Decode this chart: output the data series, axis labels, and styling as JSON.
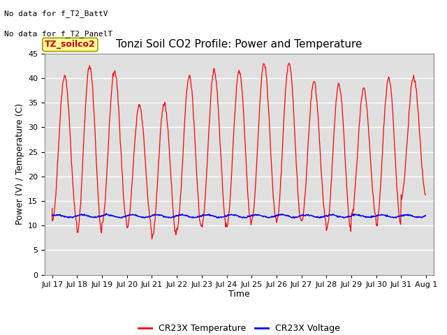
{
  "title": "Tonzi Soil CO2 Profile: Power and Temperature",
  "ylabel": "Power (V) / Temperature (C)",
  "xlabel": "Time",
  "top_left_text_line1": "No data for f_T2_BattV",
  "top_left_text_line2": "No data for f_T2_PanelT",
  "legend_label_text": "TZ_soilco2",
  "ylim": [
    0,
    45
  ],
  "yticks": [
    0,
    5,
    10,
    15,
    20,
    25,
    30,
    35,
    40,
    45
  ],
  "xtick_labels": [
    "Jul 17",
    "Jul 18",
    "Jul 19",
    "Jul 20",
    "Jul 21",
    "Jul 22",
    "Jul 23",
    "Jul 24",
    "Jul 25",
    "Jul 26",
    "Jul 27",
    "Jul 28",
    "Jul 29",
    "Jul 30",
    "Jul 31",
    "Aug 1"
  ],
  "legend_temp_label": "CR23X Temperature",
  "legend_volt_label": "CR23X Voltage",
  "temp_color": "#ff0000",
  "volt_color": "#0000ff",
  "bg_color": "#ffffff",
  "plot_bg_color": "#e0e0e0",
  "grid_color": "#ffffff",
  "legend_box_color": "#ffff99",
  "legend_box_edge": "#999900",
  "title_fontsize": 11,
  "axis_label_fontsize": 9,
  "tick_fontsize": 8,
  "note_fontsize": 8,
  "legend_label_fontsize": 9,
  "day_peaks": [
    40.5,
    42.5,
    41.5,
    34.5,
    34.8,
    40.5,
    41.5,
    41.5,
    42.8,
    43.0,
    39.0,
    38.5,
    38.0,
    40.0,
    40.0
  ],
  "day_mins": [
    10.8,
    8.5,
    10.5,
    9.5,
    7.5,
    9.5,
    10.0,
    10.0,
    11.0,
    10.8,
    10.8,
    9.0,
    12.0,
    10.0,
    16.0
  ]
}
